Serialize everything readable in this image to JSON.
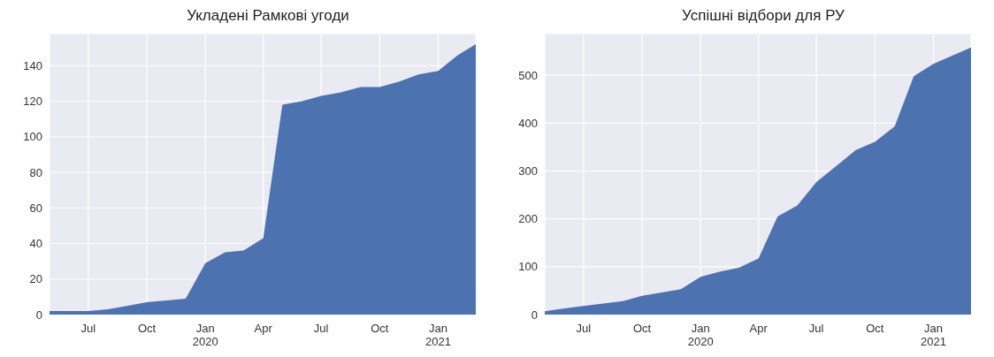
{
  "chart_data": [
    {
      "type": "area",
      "title": "Укладені Рамкові угоди",
      "x": [
        "2019-05",
        "2019-06",
        "2019-07",
        "2019-08",
        "2019-09",
        "2019-10",
        "2019-11",
        "2019-12",
        "2020-01",
        "2020-02",
        "2020-03",
        "2020-04",
        "2020-05",
        "2020-06",
        "2020-07",
        "2020-08",
        "2020-09",
        "2020-10",
        "2020-11",
        "2020-12",
        "2021-01",
        "2021-02",
        "2021-03"
      ],
      "series": [
        {
          "color": "#4c72b0",
          "values": [
            2,
            2,
            2,
            3,
            5,
            7,
            8,
            9,
            29,
            35,
            36,
            43,
            118,
            120,
            123,
            125,
            128,
            128,
            131,
            135,
            137,
            146,
            152
          ]
        }
      ],
      "xlim": [
        "2019-05",
        "2021-03"
      ],
      "xticks": [
        {
          "value": "2019-07",
          "label": "Jul"
        },
        {
          "value": "2019-10",
          "label": "Oct"
        },
        {
          "value": "2020-01",
          "label": "Jan\n2020"
        },
        {
          "value": "2020-04",
          "label": "Apr"
        },
        {
          "value": "2020-07",
          "label": "Jul"
        },
        {
          "value": "2020-10",
          "label": "Oct"
        },
        {
          "value": "2021-01",
          "label": "Jan\n2021"
        }
      ],
      "ylim": [
        0,
        158
      ],
      "yticks": [
        0,
        20,
        40,
        60,
        80,
        100,
        120,
        140
      ],
      "grid": true
    },
    {
      "type": "area",
      "title": "Успішні відбори для РУ",
      "x": [
        "2019-05",
        "2019-06",
        "2019-07",
        "2019-08",
        "2019-09",
        "2019-10",
        "2019-11",
        "2019-12",
        "2020-01",
        "2020-02",
        "2020-03",
        "2020-04",
        "2020-05",
        "2020-06",
        "2020-07",
        "2020-08",
        "2020-09",
        "2020-10",
        "2020-11",
        "2020-12",
        "2021-01",
        "2021-02",
        "2021-03"
      ],
      "series": [
        {
          "color": "#4c72b0",
          "values": [
            7,
            13,
            18,
            23,
            28,
            39,
            46,
            53,
            79,
            90,
            98,
            117,
            205,
            228,
            277,
            310,
            344,
            361,
            393,
            498,
            524,
            542,
            558
          ]
        }
      ],
      "xlim": [
        "2019-05",
        "2021-03"
      ],
      "xticks": [
        {
          "value": "2019-07",
          "label": "Jul"
        },
        {
          "value": "2019-10",
          "label": "Oct"
        },
        {
          "value": "2020-01",
          "label": "Jan\n2020"
        },
        {
          "value": "2020-04",
          "label": "Apr"
        },
        {
          "value": "2020-07",
          "label": "Jul"
        },
        {
          "value": "2020-10",
          "label": "Oct"
        },
        {
          "value": "2021-01",
          "label": "Jan\n2021"
        }
      ],
      "ylim": [
        0,
        587
      ],
      "yticks": [
        0,
        100,
        200,
        300,
        400,
        500
      ],
      "grid": true
    }
  ]
}
